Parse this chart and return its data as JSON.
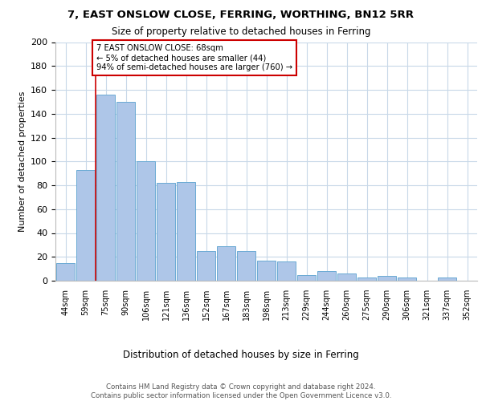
{
  "title1": "7, EAST ONSLOW CLOSE, FERRING, WORTHING, BN12 5RR",
  "title2": "Size of property relative to detached houses in Ferring",
  "xlabel": "Distribution of detached houses by size in Ferring",
  "ylabel": "Number of detached properties",
  "categories": [
    "44sqm",
    "59sqm",
    "75sqm",
    "90sqm",
    "106sqm",
    "121sqm",
    "136sqm",
    "152sqm",
    "167sqm",
    "183sqm",
    "198sqm",
    "213sqm",
    "229sqm",
    "244sqm",
    "260sqm",
    "275sqm",
    "290sqm",
    "306sqm",
    "321sqm",
    "337sqm",
    "352sqm"
  ],
  "values": [
    15,
    93,
    156,
    150,
    100,
    82,
    83,
    25,
    29,
    25,
    17,
    16,
    5,
    8,
    6,
    3,
    4,
    3,
    0,
    3,
    0
  ],
  "bar_color": "#aec6e8",
  "bar_edge_color": "#6aaad4",
  "marker_line_color": "#cc0000",
  "annotation_text": "7 EAST ONSLOW CLOSE: 68sqm\n← 5% of detached houses are smaller (44)\n94% of semi-detached houses are larger (760) →",
  "annotation_box_color": "#ffffff",
  "annotation_box_edge_color": "#cc0000",
  "ylim": [
    0,
    200
  ],
  "yticks": [
    0,
    20,
    40,
    60,
    80,
    100,
    120,
    140,
    160,
    180,
    200
  ],
  "footer_text": "Contains HM Land Registry data © Crown copyright and database right 2024.\nContains public sector information licensed under the Open Government Licence v3.0.",
  "bg_color": "#ffffff",
  "grid_color": "#c8d8e8"
}
